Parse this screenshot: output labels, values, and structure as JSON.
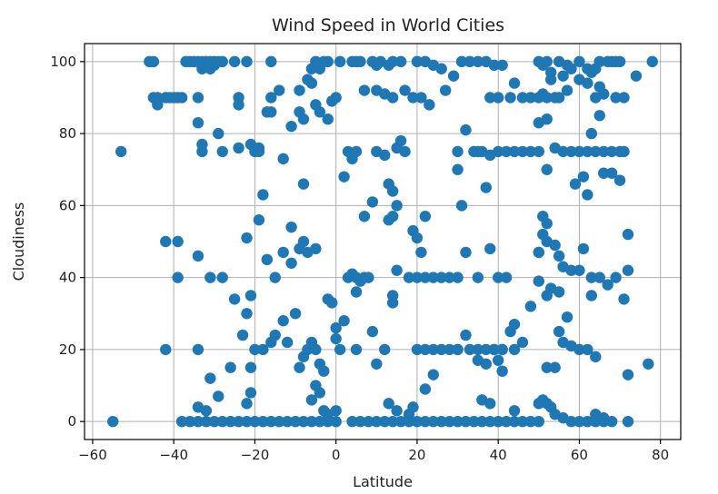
{
  "chart_data": {
    "type": "scatter",
    "title": "Wind Speed in World Cities",
    "xlabel": "Latitude",
    "ylabel": "Cloudiness",
    "xlim": [
      -62,
      85
    ],
    "ylim": [
      -5,
      105
    ],
    "xticks": [
      -60,
      -40,
      -20,
      0,
      20,
      40,
      60,
      80
    ],
    "yticks": [
      0,
      20,
      40,
      60,
      80,
      100
    ],
    "grid": true,
    "color": "#1f77b4",
    "points": [
      [
        -55,
        0
      ],
      [
        -53,
        75
      ],
      [
        -46,
        100
      ],
      [
        -45,
        100
      ],
      [
        -45,
        90
      ],
      [
        -44,
        88
      ],
      [
        -44,
        90
      ],
      [
        -42,
        90
      ],
      [
        -41,
        90
      ],
      [
        -40,
        90
      ],
      [
        -39,
        90
      ],
      [
        -38,
        90
      ],
      [
        -37,
        100
      ],
      [
        -36,
        100
      ],
      [
        -35,
        100
      ],
      [
        -34,
        100
      ],
      [
        -33,
        100
      ],
      [
        -32,
        100
      ],
      [
        -31,
        100
      ],
      [
        -30,
        99
      ],
      [
        -30,
        100
      ],
      [
        -29,
        100
      ],
      [
        -28,
        100
      ],
      [
        -33,
        98
      ],
      [
        -31,
        98
      ],
      [
        -25,
        100
      ],
      [
        -22,
        100
      ],
      [
        -16,
        100
      ],
      [
        -34,
        90
      ],
      [
        -34,
        83
      ],
      [
        -33,
        77
      ],
      [
        -33,
        75
      ],
      [
        -29,
        80
      ],
      [
        -28,
        75
      ],
      [
        -24,
        90
      ],
      [
        -24,
        88
      ],
      [
        -21,
        77
      ],
      [
        -20,
        75
      ],
      [
        -19,
        75
      ],
      [
        -19,
        76
      ],
      [
        -24,
        76
      ],
      [
        -17,
        86
      ],
      [
        -16,
        86
      ],
      [
        -16,
        90
      ],
      [
        -14,
        92
      ],
      [
        -13,
        73
      ],
      [
        -11,
        82
      ],
      [
        -9,
        86
      ],
      [
        -9,
        92
      ],
      [
        -8,
        84
      ],
      [
        -7,
        95
      ],
      [
        -6,
        94
      ],
      [
        -5,
        88
      ],
      [
        -4,
        86
      ],
      [
        -4,
        98
      ],
      [
        -3,
        100
      ],
      [
        -2,
        84
      ],
      [
        -1,
        89
      ],
      [
        0,
        90
      ],
      [
        -6,
        98
      ],
      [
        -5,
        100
      ],
      [
        -2,
        100
      ],
      [
        1,
        100
      ],
      [
        -42,
        50
      ],
      [
        -39,
        50
      ],
      [
        -39,
        40
      ],
      [
        -34,
        46
      ],
      [
        -31,
        40
      ],
      [
        -28,
        40
      ],
      [
        -22,
        51
      ],
      [
        -21,
        35
      ],
      [
        -19,
        56
      ],
      [
        -18,
        63
      ],
      [
        -17,
        45
      ],
      [
        -15,
        40
      ],
      [
        -13,
        47
      ],
      [
        -11,
        54
      ],
      [
        -11,
        44
      ],
      [
        -9,
        48
      ],
      [
        -8,
        66
      ],
      [
        -8,
        50
      ],
      [
        -7,
        47
      ],
      [
        -5,
        48
      ],
      [
        -42,
        20
      ],
      [
        -34,
        20
      ],
      [
        -34,
        4
      ],
      [
        -32,
        3
      ],
      [
        -31,
        12
      ],
      [
        -29,
        7
      ],
      [
        -26,
        15
      ],
      [
        -25,
        34
      ],
      [
        -23,
        24
      ],
      [
        -22,
        30
      ],
      [
        -21,
        15
      ],
      [
        -21,
        8
      ],
      [
        -22,
        5
      ],
      [
        -20,
        20
      ],
      [
        -18,
        20
      ],
      [
        -16,
        22
      ],
      [
        -15,
        24
      ],
      [
        -13,
        28
      ],
      [
        -12,
        22
      ],
      [
        -10,
        30
      ],
      [
        -9,
        15
      ],
      [
        -8,
        18
      ],
      [
        -7,
        20
      ],
      [
        -6,
        22
      ],
      [
        -5,
        20
      ],
      [
        -4,
        16
      ],
      [
        -3,
        14
      ],
      [
        -2,
        34
      ],
      [
        -1,
        33
      ],
      [
        0,
        26
      ],
      [
        0,
        23
      ],
      [
        1,
        20
      ],
      [
        2,
        28
      ],
      [
        -5,
        10
      ],
      [
        -6,
        6
      ],
      [
        -4,
        8
      ],
      [
        -3,
        3
      ],
      [
        -2,
        2
      ],
      [
        0,
        3
      ],
      [
        -38,
        0
      ],
      [
        -36,
        0
      ],
      [
        -34,
        0
      ],
      [
        -32,
        0
      ],
      [
        -30,
        0
      ],
      [
        -28,
        0
      ],
      [
        -26,
        0
      ],
      [
        -24,
        0
      ],
      [
        -22,
        0
      ],
      [
        -20,
        0
      ],
      [
        -18,
        0
      ],
      [
        -16,
        0
      ],
      [
        -14,
        0
      ],
      [
        -12,
        0
      ],
      [
        -10,
        0
      ],
      [
        -8,
        0
      ],
      [
        -6,
        0
      ],
      [
        -4,
        0
      ],
      [
        -2,
        0
      ],
      [
        0,
        0
      ],
      [
        2,
        68
      ],
      [
        3,
        75
      ],
      [
        4,
        73
      ],
      [
        5,
        75
      ],
      [
        7,
        57
      ],
      [
        9,
        61
      ],
      [
        10,
        75
      ],
      [
        12,
        74
      ],
      [
        13,
        66
      ],
      [
        14,
        64
      ],
      [
        15,
        60
      ],
      [
        14,
        57
      ],
      [
        13,
        56
      ],
      [
        15,
        76
      ],
      [
        16,
        78
      ],
      [
        17,
        75
      ],
      [
        19,
        53
      ],
      [
        20,
        51
      ],
      [
        21,
        47
      ],
      [
        22,
        57
      ],
      [
        4,
        100
      ],
      [
        5,
        100
      ],
      [
        6,
        100
      ],
      [
        9,
        100
      ],
      [
        10,
        99
      ],
      [
        11,
        100
      ],
      [
        13,
        99
      ],
      [
        14,
        100
      ],
      [
        16,
        100
      ],
      [
        20,
        100
      ],
      [
        22,
        100
      ],
      [
        24,
        99
      ],
      [
        7,
        92
      ],
      [
        10,
        92
      ],
      [
        12,
        91
      ],
      [
        14,
        90
      ],
      [
        17,
        92
      ],
      [
        19,
        90
      ],
      [
        21,
        90
      ],
      [
        23,
        88
      ],
      [
        26,
        98
      ],
      [
        27,
        92
      ],
      [
        29,
        96
      ],
      [
        3,
        40
      ],
      [
        4,
        41
      ],
      [
        5,
        40
      ],
      [
        6,
        39
      ],
      [
        7,
        40
      ],
      [
        8,
        40
      ],
      [
        5,
        36
      ],
      [
        9,
        25
      ],
      [
        12,
        20
      ],
      [
        15,
        42
      ],
      [
        18,
        40
      ],
      [
        20,
        40
      ],
      [
        22,
        40
      ],
      [
        24,
        40
      ],
      [
        26,
        40
      ],
      [
        28,
        40
      ],
      [
        30,
        40
      ],
      [
        14,
        35
      ],
      [
        14,
        33
      ],
      [
        5,
        20
      ],
      [
        10,
        16
      ],
      [
        13,
        5
      ],
      [
        15,
        3
      ],
      [
        18,
        2
      ],
      [
        19,
        4
      ],
      [
        20,
        20
      ],
      [
        22,
        20
      ],
      [
        24,
        20
      ],
      [
        22,
        9
      ],
      [
        24,
        13
      ],
      [
        26,
        20
      ],
      [
        28,
        20
      ],
      [
        30,
        20
      ],
      [
        4,
        0
      ],
      [
        6,
        0
      ],
      [
        8,
        0
      ],
      [
        10,
        0
      ],
      [
        12,
        0
      ],
      [
        14,
        0
      ],
      [
        16,
        0
      ],
      [
        18,
        0
      ],
      [
        20,
        0
      ],
      [
        22,
        0
      ],
      [
        24,
        0
      ],
      [
        26,
        0
      ],
      [
        28,
        0
      ],
      [
        30,
        0
      ],
      [
        31,
        100
      ],
      [
        33,
        100
      ],
      [
        35,
        100
      ],
      [
        37,
        100
      ],
      [
        39,
        99
      ],
      [
        41,
        99
      ],
      [
        46,
        90
      ],
      [
        48,
        90
      ],
      [
        50,
        90
      ],
      [
        52,
        90
      ],
      [
        54,
        90
      ],
      [
        44,
        94
      ],
      [
        43,
        90
      ],
      [
        40,
        90
      ],
      [
        38,
        90
      ],
      [
        30,
        75
      ],
      [
        32,
        81
      ],
      [
        34,
        75
      ],
      [
        36,
        75
      ],
      [
        38,
        74
      ],
      [
        40,
        75
      ],
      [
        42,
        75
      ],
      [
        44,
        75
      ],
      [
        46,
        75
      ],
      [
        48,
        75
      ],
      [
        50,
        75
      ],
      [
        37,
        65
      ],
      [
        35,
        75
      ],
      [
        30,
        70
      ],
      [
        31,
        60
      ],
      [
        32,
        47
      ],
      [
        35,
        40
      ],
      [
        38,
        48
      ],
      [
        40,
        40
      ],
      [
        42,
        40
      ],
      [
        39,
        20
      ],
      [
        41,
        20
      ],
      [
        44,
        20
      ],
      [
        46,
        22
      ],
      [
        48,
        32
      ],
      [
        50,
        39
      ],
      [
        50,
        47
      ],
      [
        30,
        20
      ],
      [
        32,
        24
      ],
      [
        33,
        20
      ],
      [
        35,
        20
      ],
      [
        37,
        20
      ],
      [
        39,
        20
      ],
      [
        41,
        20
      ],
      [
        43,
        25
      ],
      [
        44,
        27
      ],
      [
        35,
        17
      ],
      [
        37,
        16
      ],
      [
        40,
        17
      ],
      [
        41,
        14
      ],
      [
        36,
        6
      ],
      [
        38,
        5
      ],
      [
        44,
        3
      ],
      [
        32,
        0
      ],
      [
        34,
        0
      ],
      [
        36,
        0
      ],
      [
        38,
        0
      ],
      [
        40,
        0
      ],
      [
        42,
        0
      ],
      [
        44,
        0
      ],
      [
        46,
        0
      ],
      [
        48,
        0
      ],
      [
        50,
        0
      ],
      [
        50,
        100
      ],
      [
        51,
        99
      ],
      [
        52,
        100
      ],
      [
        53,
        97
      ],
      [
        55,
        100
      ],
      [
        56,
        96
      ],
      [
        57,
        99
      ],
      [
        58,
        98
      ],
      [
        60,
        100
      ],
      [
        62,
        98
      ],
      [
        63,
        97
      ],
      [
        64,
        98
      ],
      [
        65,
        100
      ],
      [
        67,
        100
      ],
      [
        68,
        100
      ],
      [
        69,
        100
      ],
      [
        70,
        100
      ],
      [
        74,
        96
      ],
      [
        78,
        100
      ],
      [
        51,
        91
      ],
      [
        53,
        95
      ],
      [
        55,
        90
      ],
      [
        57,
        92
      ],
      [
        60,
        95
      ],
      [
        62,
        94
      ],
      [
        64,
        90
      ],
      [
        65,
        93
      ],
      [
        66,
        91
      ],
      [
        69,
        90
      ],
      [
        71,
        90
      ],
      [
        50,
        83
      ],
      [
        52,
        84
      ],
      [
        54,
        76
      ],
      [
        56,
        75
      ],
      [
        58,
        75
      ],
      [
        60,
        75
      ],
      [
        62,
        75
      ],
      [
        64,
        75
      ],
      [
        66,
        75
      ],
      [
        68,
        75
      ],
      [
        70,
        75
      ],
      [
        71,
        75
      ],
      [
        63,
        80
      ],
      [
        65,
        85
      ],
      [
        66,
        69
      ],
      [
        68,
        69
      ],
      [
        70,
        67
      ],
      [
        59,
        66
      ],
      [
        62,
        63
      ],
      [
        61,
        68
      ],
      [
        52,
        70
      ],
      [
        51,
        57
      ],
      [
        52,
        55
      ],
      [
        51,
        52
      ],
      [
        52,
        50
      ],
      [
        54,
        49
      ],
      [
        55,
        46
      ],
      [
        56,
        43
      ],
      [
        58,
        42
      ],
      [
        60,
        42
      ],
      [
        61,
        48
      ],
      [
        63,
        40
      ],
      [
        65,
        40
      ],
      [
        67,
        38
      ],
      [
        69,
        40
      ],
      [
        71,
        34
      ],
      [
        72,
        42
      ],
      [
        72,
        52
      ],
      [
        50,
        47
      ],
      [
        53,
        37
      ],
      [
        55,
        36
      ],
      [
        52,
        35
      ],
      [
        63,
        35
      ],
      [
        55,
        25
      ],
      [
        56,
        22
      ],
      [
        57,
        29
      ],
      [
        58,
        21
      ],
      [
        60,
        20
      ],
      [
        62,
        20
      ],
      [
        64,
        18
      ],
      [
        54,
        15
      ],
      [
        52,
        15
      ],
      [
        72,
        13
      ],
      [
        77,
        16
      ],
      [
        50,
        5
      ],
      [
        51,
        6
      ],
      [
        52,
        5
      ],
      [
        53,
        4
      ],
      [
        54,
        2
      ],
      [
        56,
        1
      ],
      [
        58,
        0
      ],
      [
        60,
        0
      ],
      [
        62,
        0
      ],
      [
        64,
        0
      ],
      [
        66,
        0
      ],
      [
        68,
        0
      ],
      [
        72,
        0
      ],
      [
        64,
        2
      ],
      [
        66,
        1
      ]
    ]
  }
}
